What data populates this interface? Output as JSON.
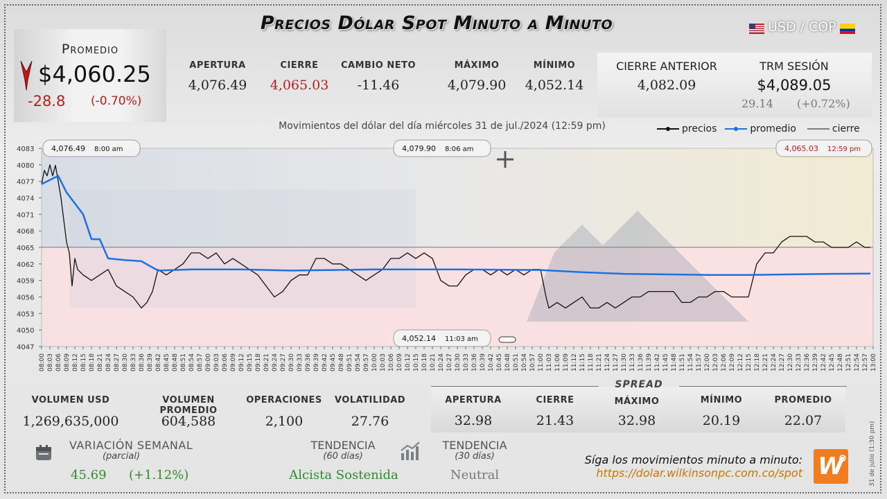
{
  "title": "Precios Dólar Spot Minuto a Minuto",
  "pair": "USD / COP",
  "promedio": {
    "label": "Promedio",
    "value": "$4,060.25",
    "change": "-28.8",
    "change_pct": "(-0.70%)"
  },
  "stats_top": [
    {
      "label": "APERTURA",
      "value": "4,076.49",
      "color": "#222222"
    },
    {
      "label": "CIERRE",
      "value": "4,065.03",
      "color": "#b51e1e"
    },
    {
      "label": "CAMBIO NETO",
      "value": "-11.46",
      "color": "#222222"
    },
    {
      "label": "MÁXIMO",
      "value": "4,079.90",
      "color": "#222222"
    },
    {
      "label": "MÍNIMO",
      "value": "4,052.14",
      "color": "#222222"
    }
  ],
  "cierre_anterior": {
    "label": "CIERRE ANTERIOR",
    "value": "4,082.09"
  },
  "trm": {
    "label": "TRM SESIÓN",
    "value": "$4,089.05",
    "change": "29.14",
    "change_pct": "(+0.72%)"
  },
  "chart_data": {
    "type": "line",
    "title": "Movimientos del dólar del día miércoles 31 de jul./2024 (12:59 pm)",
    "legend": [
      "precios",
      "promedio",
      "cierre"
    ],
    "legend_position": "top-right",
    "ylim": [
      4047,
      4083
    ],
    "yticks": [
      4083,
      4080,
      4077,
      4074,
      4071,
      4068,
      4065,
      4062,
      4059,
      4056,
      4053,
      4050,
      4047
    ],
    "xlim": [
      "08:00",
      "13:00"
    ],
    "xticks": [
      "08:00",
      "08:03",
      "08:06",
      "08:09",
      "08:12",
      "08:15",
      "08:18",
      "08:21",
      "08:24",
      "08:27",
      "08:30",
      "08:33",
      "08:36",
      "08:39",
      "08:42",
      "08:45",
      "08:48",
      "08:51",
      "08:54",
      "08:57",
      "09:00",
      "09:03",
      "09:06",
      "09:09",
      "09:12",
      "09:15",
      "09:18",
      "09:21",
      "09:24",
      "09:27",
      "09:30",
      "09:33",
      "09:36",
      "09:39",
      "09:42",
      "09:45",
      "09:48",
      "09:51",
      "09:54",
      "09:57",
      "10:00",
      "10:03",
      "10:06",
      "10:09",
      "10:12",
      "10:15",
      "10:18",
      "10:21",
      "10:24",
      "10:27",
      "10:30",
      "10:33",
      "10:36",
      "10:39",
      "10:42",
      "10:45",
      "10:48",
      "10:51",
      "10:54",
      "10:57",
      "11:00",
      "11:03",
      "11:06",
      "11:09",
      "11:12",
      "11:15",
      "11:18",
      "11:21",
      "11:24",
      "11:27",
      "11:30",
      "11:33",
      "11:36",
      "11:39",
      "11:42",
      "11:45",
      "11:48",
      "11:51",
      "11:54",
      "11:57",
      "12:00",
      "12:03",
      "12:06",
      "12:09",
      "12:12",
      "12:15",
      "12:18",
      "12:21",
      "12:24",
      "12:27",
      "12:30",
      "12:33",
      "12:36",
      "12:39",
      "12:42",
      "12:45",
      "12:48",
      "12:51",
      "12:54",
      "12:57",
      "13:00"
    ],
    "cierre_line": 4065.03,
    "series": [
      {
        "name": "precios",
        "color": "#111111",
        "x": [
          "08:00",
          "08:01",
          "08:02",
          "08:03",
          "08:04",
          "08:05",
          "08:06",
          "08:07",
          "08:08",
          "08:09",
          "08:10",
          "08:11",
          "08:12",
          "08:13",
          "08:15",
          "08:18",
          "08:21",
          "08:24",
          "08:27",
          "08:30",
          "08:33",
          "08:36",
          "08:38",
          "08:40",
          "08:42",
          "08:45",
          "08:48",
          "08:51",
          "08:54",
          "08:57",
          "09:00",
          "09:03",
          "09:06",
          "09:09",
          "09:12",
          "09:15",
          "09:18",
          "09:21",
          "09:24",
          "09:27",
          "09:30",
          "09:33",
          "09:36",
          "09:39",
          "09:42",
          "09:45",
          "09:48",
          "09:51",
          "09:54",
          "09:57",
          "10:00",
          "10:03",
          "10:06",
          "10:09",
          "10:12",
          "10:15",
          "10:18",
          "10:21",
          "10:24",
          "10:27",
          "10:30",
          "10:33",
          "10:36",
          "10:39",
          "10:42",
          "10:45",
          "10:48",
          "10:51",
          "10:54",
          "10:57",
          "11:00",
          "11:02",
          "11:03",
          "11:06",
          "11:09",
          "11:12",
          "11:15",
          "11:18",
          "11:21",
          "11:24",
          "11:27",
          "11:30",
          "11:33",
          "11:36",
          "11:39",
          "11:42",
          "11:45",
          "11:48",
          "11:51",
          "11:54",
          "11:57",
          "12:00",
          "12:03",
          "12:06",
          "12:09",
          "12:12",
          "12:15",
          "12:18",
          "12:21",
          "12:24",
          "12:27",
          "12:30",
          "12:33",
          "12:36",
          "12:39",
          "12:42",
          "12:45",
          "12:48",
          "12:51",
          "12:54",
          "12:57",
          "12:59"
        ],
        "values": [
          4076.5,
          4079,
          4078,
          4080,
          4078,
          4079.9,
          4077,
          4074,
          4070,
          4066,
          4064,
          4058,
          4063,
          4061,
          4060,
          4059,
          4060,
          4061,
          4058,
          4057,
          4056,
          4054,
          4055,
          4057,
          4061,
          4060,
          4061,
          4062,
          4064,
          4064,
          4063,
          4064,
          4062,
          4063,
          4062,
          4061,
          4060,
          4058,
          4056,
          4057,
          4059,
          4060,
          4060,
          4063,
          4063,
          4062,
          4062,
          4061,
          4060,
          4059,
          4060,
          4061,
          4063,
          4063,
          4064,
          4063,
          4064,
          4063,
          4059,
          4058,
          4058,
          4060,
          4061,
          4061,
          4060,
          4061,
          4060,
          4061,
          4060,
          4061,
          4061,
          4056,
          4054,
          4055,
          4054,
          4055,
          4056,
          4054,
          4054,
          4055,
          4054,
          4055,
          4056,
          4056,
          4057,
          4057,
          4057,
          4057,
          4055,
          4055,
          4056,
          4056,
          4057,
          4057,
          4056,
          4056,
          4056,
          4062,
          4064,
          4064,
          4066,
          4067,
          4067,
          4067,
          4066,
          4066,
          4065,
          4065,
          4065,
          4066,
          4065,
          4065.03
        ]
      },
      {
        "name": "promedio",
        "color": "#1f6fe0",
        "x": [
          "08:00",
          "08:06",
          "08:09",
          "08:12",
          "08:15",
          "08:18",
          "08:21",
          "08:24",
          "08:30",
          "08:36",
          "08:42",
          "08:48",
          "08:54",
          "09:00",
          "09:12",
          "09:30",
          "10:00",
          "10:30",
          "11:00",
          "11:15",
          "11:30",
          "11:45",
          "12:00",
          "12:15",
          "12:30",
          "12:45",
          "12:59"
        ],
        "values": [
          4076.5,
          4078,
          4075,
          4073,
          4071,
          4066.5,
          4066.5,
          4063,
          4062.7,
          4062.5,
          4060.8,
          4060.9,
          4061,
          4061,
          4061,
          4060.8,
          4061,
          4061,
          4060.9,
          4060.5,
          4060.2,
          4060.1,
          4060,
          4060,
          4060.1,
          4060.2,
          4060.25
        ]
      }
    ],
    "annotations": [
      {
        "text": "4,076.49",
        "time": "8:00 am"
      },
      {
        "text": "4,079.90",
        "time": "8:06 am"
      },
      {
        "text": "4,065.03",
        "time": "12:59 pm"
      },
      {
        "text": "4,052.14",
        "time": "11:03 am"
      }
    ]
  },
  "bottom_stats": [
    {
      "label": "VOLUMEN USD",
      "value": "1,269,635,000"
    },
    {
      "label": "VOLUMEN PROMEDIO",
      "value": "604,588"
    },
    {
      "label": "OPERACIONES",
      "value": "2,100"
    },
    {
      "label": "VOLATILIDAD",
      "value": "27.76"
    }
  ],
  "spread": {
    "label": "SPREAD",
    "items": [
      {
        "label": "APERTURA",
        "value": "32.98"
      },
      {
        "label": "CIERRE",
        "value": "21.43"
      },
      {
        "label": "MÁXIMO",
        "value": "32.98"
      },
      {
        "label": "MÍNIMO",
        "value": "20.19"
      },
      {
        "label": "PROMEDIO",
        "value": "22.07"
      }
    ]
  },
  "variacion": {
    "label": "VARIACIÓN SEMANAL",
    "sub": "(parcial)",
    "value": "45.69",
    "pct": "(+1.12%)"
  },
  "tendencia60": {
    "label": "TENDENCIA",
    "sub": "(60 días)",
    "value": "Alcista Sostenida"
  },
  "tendencia30": {
    "label": "TENDENCIA",
    "sub": "(30 días)",
    "value": "Neutral"
  },
  "follow": {
    "text": "Síga los movimientos minuto a minuto:",
    "url": "https://dolar.wilkinsonpc.com.co/spot"
  },
  "side_note": "31 de julio (1:30 pm)",
  "logo_text": "W"
}
